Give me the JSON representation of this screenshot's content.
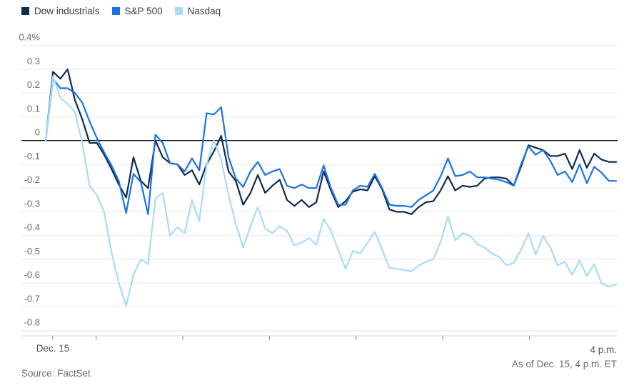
{
  "chart_data": {
    "type": "line",
    "title": "",
    "x_axis": {
      "start_label": "Dec. 15",
      "end_label": "4 p.m.",
      "range_minutes": [
        0,
        390
      ],
      "tick_minutes": [
        0,
        30,
        90,
        150,
        210,
        270,
        330
      ],
      "interval_minutes": 5
    },
    "y_axis": {
      "min": -0.8,
      "max": 0.4,
      "step": 0.1,
      "unit": "%",
      "top_tick_label": "0.4%",
      "zero_baseline": true,
      "grid": true
    },
    "legend_position": "top-left",
    "as_of": "As of Dec. 15, 4 p.m. ET",
    "source": "Source: FactSet",
    "series": [
      {
        "name": "Dow industrials",
        "color": "#0f2b4e",
        "values": [
          0.0,
          0.29,
          0.26,
          0.3,
          0.17,
          0.09,
          -0.01,
          -0.01,
          -0.06,
          -0.12,
          -0.185,
          -0.24,
          -0.07,
          -0.17,
          -0.2,
          0.0,
          -0.07,
          -0.095,
          -0.1,
          -0.145,
          -0.125,
          -0.185,
          -0.1,
          -0.045,
          0.02,
          -0.13,
          -0.17,
          -0.27,
          -0.22,
          -0.145,
          -0.22,
          -0.19,
          -0.165,
          -0.25,
          -0.275,
          -0.25,
          -0.28,
          -0.26,
          -0.13,
          -0.21,
          -0.28,
          -0.255,
          -0.215,
          -0.205,
          -0.21,
          -0.15,
          -0.205,
          -0.29,
          -0.3,
          -0.3,
          -0.31,
          -0.28,
          -0.26,
          -0.255,
          -0.21,
          -0.15,
          -0.21,
          -0.19,
          -0.195,
          -0.19,
          -0.16,
          -0.155,
          -0.155,
          -0.16,
          -0.19,
          -0.11,
          -0.02,
          -0.03,
          -0.04,
          -0.065,
          -0.065,
          -0.055,
          -0.12,
          -0.04,
          -0.115,
          -0.055,
          -0.08,
          -0.09,
          -0.09
        ]
      },
      {
        "name": "S&P 500",
        "color": "#1a72e8",
        "values": [
          0.0,
          0.26,
          0.22,
          0.22,
          0.2,
          0.16,
          0.08,
          0.01,
          -0.05,
          -0.105,
          -0.17,
          -0.305,
          -0.14,
          -0.175,
          -0.31,
          0.025,
          -0.01,
          -0.095,
          -0.1,
          -0.13,
          -0.075,
          -0.125,
          0.115,
          0.11,
          0.14,
          -0.07,
          -0.16,
          -0.195,
          -0.13,
          -0.09,
          -0.145,
          -0.13,
          -0.12,
          -0.19,
          -0.2,
          -0.185,
          -0.2,
          -0.2,
          -0.105,
          -0.2,
          -0.27,
          -0.27,
          -0.21,
          -0.19,
          -0.195,
          -0.14,
          -0.2,
          -0.27,
          -0.275,
          -0.275,
          -0.28,
          -0.25,
          -0.23,
          -0.21,
          -0.15,
          -0.075,
          -0.15,
          -0.145,
          -0.13,
          -0.155,
          -0.155,
          -0.16,
          -0.165,
          -0.175,
          -0.19,
          -0.1,
          -0.025,
          -0.06,
          -0.04,
          -0.085,
          -0.145,
          -0.13,
          -0.175,
          -0.1,
          -0.18,
          -0.11,
          -0.135,
          -0.17,
          -0.17
        ]
      },
      {
        "name": "Nasdaq",
        "color": "#a8dcf8",
        "values": [
          0.0,
          0.27,
          0.18,
          0.155,
          0.12,
          -0.01,
          -0.19,
          -0.23,
          -0.3,
          -0.47,
          -0.6,
          -0.695,
          -0.565,
          -0.5,
          -0.52,
          -0.245,
          -0.22,
          -0.4,
          -0.365,
          -0.39,
          -0.25,
          -0.34,
          -0.1,
          0.0,
          -0.08,
          -0.23,
          -0.35,
          -0.45,
          -0.36,
          -0.28,
          -0.37,
          -0.39,
          -0.36,
          -0.38,
          -0.44,
          -0.43,
          -0.41,
          -0.44,
          -0.33,
          -0.38,
          -0.46,
          -0.54,
          -0.465,
          -0.475,
          -0.43,
          -0.385,
          -0.46,
          -0.535,
          -0.54,
          -0.545,
          -0.55,
          -0.525,
          -0.51,
          -0.5,
          -0.425,
          -0.32,
          -0.42,
          -0.39,
          -0.4,
          -0.435,
          -0.45,
          -0.475,
          -0.49,
          -0.525,
          -0.515,
          -0.46,
          -0.39,
          -0.48,
          -0.4,
          -0.45,
          -0.525,
          -0.51,
          -0.565,
          -0.505,
          -0.57,
          -0.52,
          -0.6,
          -0.615,
          -0.605
        ]
      }
    ],
    "colors": {
      "grid_line": "#e9e9e9",
      "zero_line": "#1a1a1a",
      "axis_line": "#d9d9d9",
      "tick_mark": "#8a8a8a",
      "y_label_text": "#6b6b6b",
      "x_label_text": "#555555",
      "legend_text": "#3c3c3c"
    }
  }
}
